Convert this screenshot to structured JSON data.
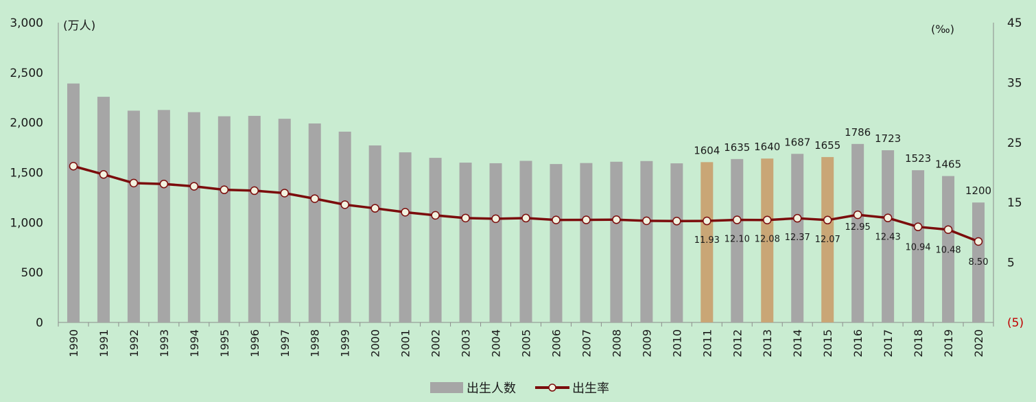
{
  "chart_data": {
    "type": "bar+line",
    "categories": [
      "1990",
      "1991",
      "1992",
      "1993",
      "1994",
      "1995",
      "1996",
      "1997",
      "1998",
      "1999",
      "2000",
      "2001",
      "2002",
      "2003",
      "2004",
      "2005",
      "2006",
      "2007",
      "2008",
      "2009",
      "2010",
      "2011",
      "2012",
      "2013",
      "2014",
      "2015",
      "2016",
      "2017",
      "2018",
      "2019",
      "2020"
    ],
    "left_axis": {
      "unit": "(万人)",
      "ylim": [
        0,
        3000
      ],
      "ticks": [
        "0",
        "500",
        "1,000",
        "1,500",
        "2,000",
        "2,500",
        "3,000"
      ],
      "tick_values": [
        0,
        500,
        1000,
        1500,
        2000,
        2500,
        3000
      ]
    },
    "right_axis": {
      "unit": "(‰)",
      "ylim": [
        -5,
        45
      ],
      "ticks": [
        "(5)",
        "5",
        "15",
        "25",
        "35",
        "45"
      ],
      "tick_values": [
        -5,
        5,
        15,
        25,
        35,
        45
      ],
      "negative_tick_color": "#c00000"
    },
    "series": [
      {
        "name": "出生人数",
        "type": "bar",
        "axis": "left",
        "color": "#a6a6a6",
        "highlight_color": "#c9a676",
        "highlight_categories": [
          "2011",
          "2013",
          "2015"
        ],
        "values": [
          2391,
          2258,
          2119,
          2126,
          2104,
          2063,
          2067,
          2038,
          1991,
          1909,
          1771,
          1702,
          1647,
          1599,
          1593,
          1617,
          1585,
          1595,
          1608,
          1615,
          1592,
          1604,
          1635,
          1640,
          1687,
          1655,
          1786,
          1723,
          1523,
          1465,
          1200
        ],
        "data_labels": [
          null,
          null,
          null,
          null,
          null,
          null,
          null,
          null,
          null,
          null,
          null,
          null,
          null,
          null,
          null,
          null,
          null,
          null,
          null,
          null,
          null,
          "1604",
          "1635",
          "1640",
          "1687",
          "1655",
          "1786",
          "1723",
          "1523",
          "1465",
          "1200"
        ]
      },
      {
        "name": "出生率",
        "type": "line",
        "axis": "right",
        "color": "#7b0c0c",
        "values": [
          21.06,
          19.68,
          18.24,
          18.09,
          17.7,
          17.12,
          16.98,
          16.57,
          15.64,
          14.64,
          14.03,
          13.38,
          12.86,
          12.41,
          12.29,
          12.4,
          12.09,
          12.1,
          12.14,
          11.95,
          11.9,
          11.93,
          12.1,
          12.08,
          12.37,
          12.07,
          12.95,
          12.43,
          10.94,
          10.48,
          8.5
        ],
        "data_labels": [
          null,
          null,
          null,
          null,
          null,
          null,
          null,
          null,
          null,
          null,
          null,
          null,
          null,
          null,
          null,
          null,
          null,
          null,
          null,
          null,
          null,
          "11.93",
          "12.10",
          "12.08",
          "12.37",
          "12.07",
          "12.95",
          "12.43",
          "10.94",
          "10.48",
          "8.50"
        ]
      }
    ],
    "legend": {
      "placement": "bottom",
      "entries": [
        "出生人数",
        "出生率"
      ]
    },
    "grid": false
  }
}
